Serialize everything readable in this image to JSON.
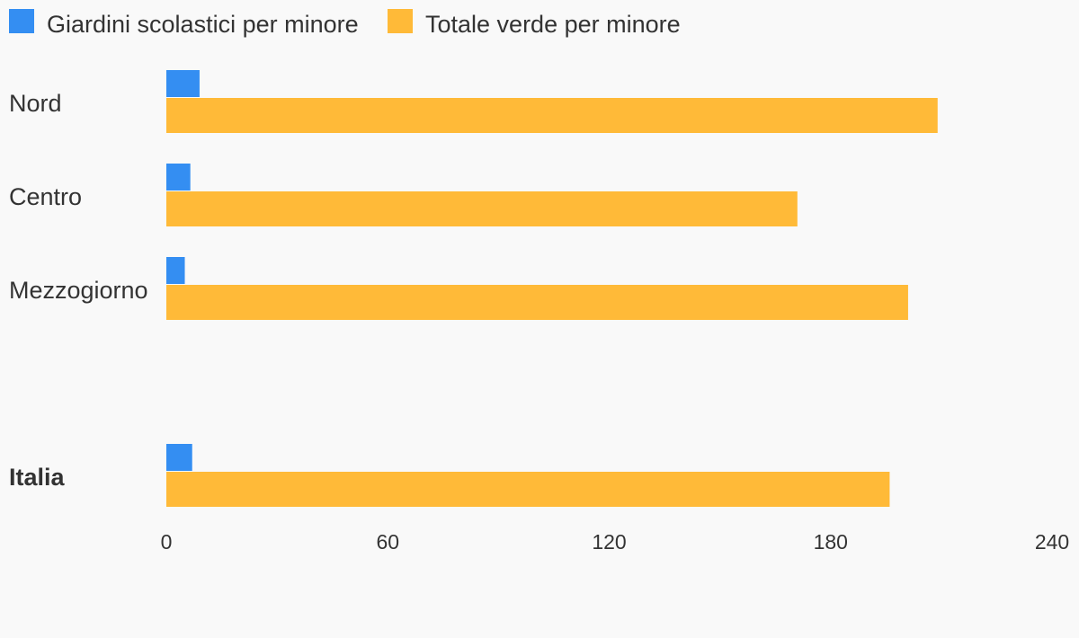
{
  "chart_data": {
    "type": "bar",
    "orientation": "horizontal",
    "categories": [
      "Nord",
      "Centro",
      "Mezzogiorno",
      "Italia"
    ],
    "category_bold": [
      false,
      false,
      false,
      true
    ],
    "series": [
      {
        "name": "Giardini scolastici per minore",
        "color": "#348ef2",
        "values": [
          9,
          6.5,
          5,
          7
        ]
      },
      {
        "name": "Totale verde per minore",
        "color": "#ffba38",
        "values": [
          209,
          171,
          201,
          196
        ]
      }
    ],
    "x_ticks": [
      "0",
      "60",
      "120",
      "180",
      "240"
    ],
    "xlim": [
      0,
      240
    ],
    "grid": false,
    "legend_position": "top-left",
    "title": "",
    "xlabel": "",
    "ylabel": ""
  }
}
